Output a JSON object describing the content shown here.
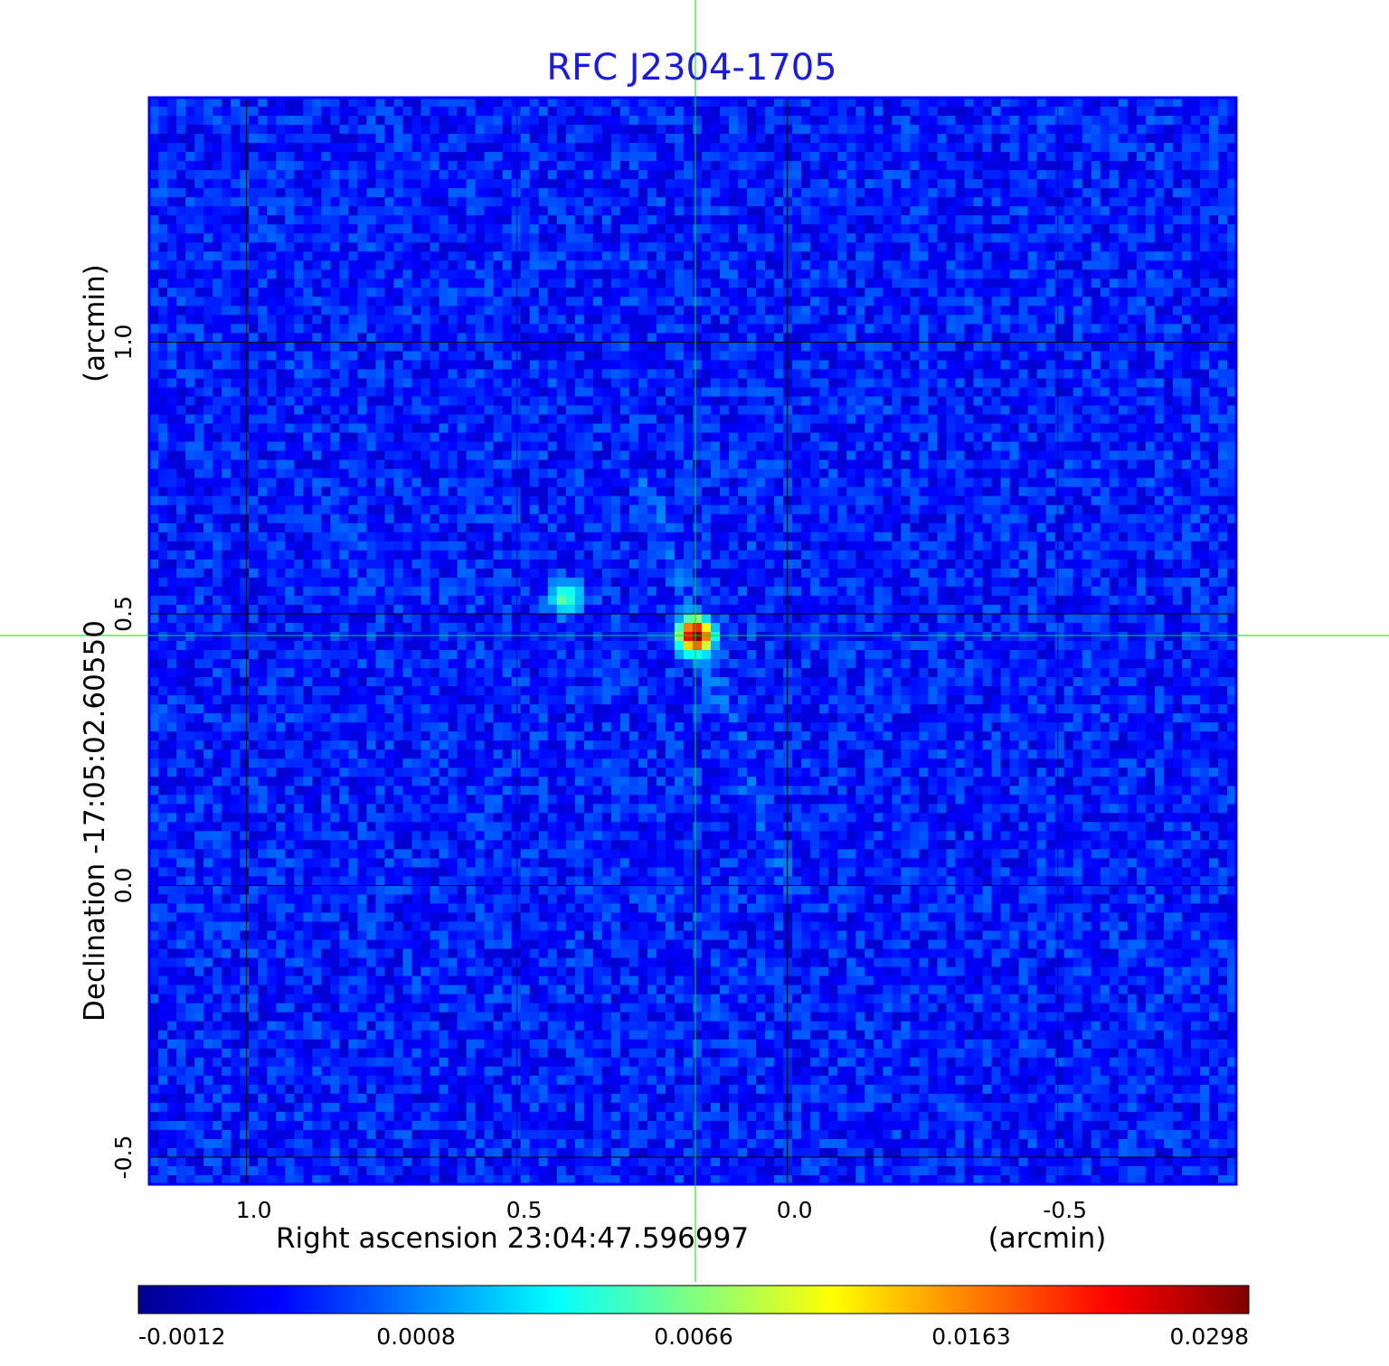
{
  "chart_data": {
    "type": "heatmap",
    "title": "RFC J2304-1705",
    "xlabel": "Right ascension  23:04:47.596997",
    "xunit": "(arcmin)",
    "ylabel": "Declination  -17:05:02.60550",
    "yunit": "(arcmin)",
    "x_range": [
      1.18,
      -0.83
    ],
    "y_range": [
      -0.55,
      1.45
    ],
    "x_ticks": [
      1.0,
      0.5,
      0.0,
      -0.5
    ],
    "x_tick_labels": [
      "1.0",
      "0.5",
      "0.0",
      "-0.5"
    ],
    "y_ticks": [
      -0.5,
      0.0,
      0.5,
      1.0
    ],
    "y_tick_labels": [
      "-0.5",
      "0.0",
      "0.5",
      "1.0"
    ],
    "grid": true,
    "crosshair": {
      "x": 0.17,
      "y": 0.46
    },
    "colormap": "jet",
    "colorbar_ticks": [
      "-0.0012",
      "0.0008",
      "0.0066",
      "0.0163",
      "0.0298"
    ],
    "sources": [
      {
        "x": 0.17,
        "y": 0.46,
        "peak": 0.0298
      },
      {
        "x": 0.41,
        "y": 0.53,
        "peak": 0.006
      }
    ],
    "jet_feature": {
      "from": [
        0.27,
        0.75
      ],
      "to": [
        0.0,
        0.0
      ]
    },
    "noise_level": 0.0006,
    "colors": {
      "title": "#1a1ae6",
      "frame": "#0000ff",
      "crosshair": "#00e000",
      "grid": "#000000"
    }
  }
}
